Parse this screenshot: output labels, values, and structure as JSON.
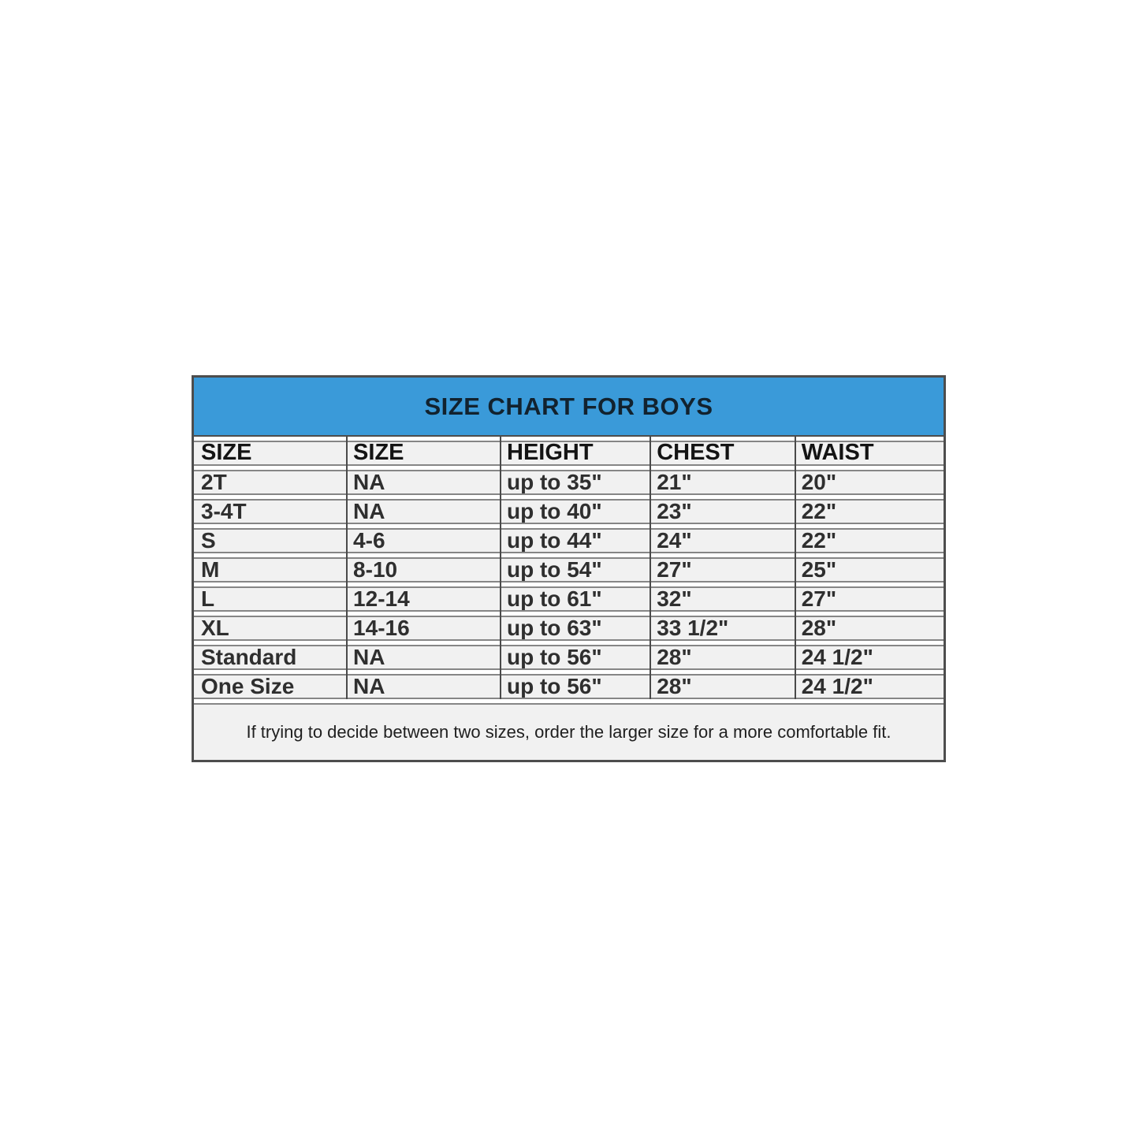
{
  "table": {
    "title": "SIZE CHART FOR BOYS",
    "columns": [
      "SIZE",
      "SIZE",
      "HEIGHT",
      "CHEST",
      "WAIST"
    ],
    "rows": [
      [
        "2T",
        "NA",
        "up to 35\"",
        "21\"",
        "20\""
      ],
      [
        "3-4T",
        "NA",
        "up to 40\"",
        "23\"",
        "22\""
      ],
      [
        "S",
        "4-6",
        "up to 44\"",
        "24\"",
        "22\""
      ],
      [
        "M",
        "8-10",
        "up to 54\"",
        "27\"",
        "25\""
      ],
      [
        "L",
        "12-14",
        "up to 61\"",
        "32\"",
        "27\""
      ],
      [
        "XL",
        "14-16",
        "up to 63\"",
        "33 1/2\"",
        "28\""
      ],
      [
        "Standard",
        "NA",
        "up to 56\"",
        "28\"",
        "24 1/2\""
      ],
      [
        "One Size",
        "NA",
        "up to 56\"",
        "28\"",
        "24 1/2\""
      ]
    ],
    "footnote": "If trying to decide between two sizes, order the larger size for a more comfortable fit."
  },
  "colors": {
    "title_bar_bg": "#3a9ad9",
    "title_text": "#12222e",
    "cell_bg": "#f1f1f1",
    "outer_border": "#4d4d4d",
    "row_border": "#868686"
  }
}
